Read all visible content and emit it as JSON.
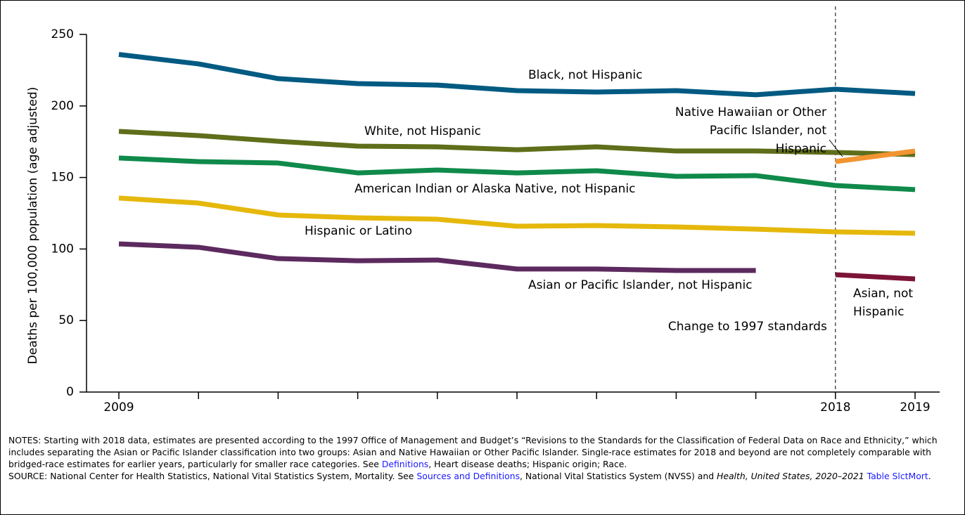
{
  "chart_data": {
    "type": "line",
    "y_label": "Deaths per 100,000 population (age adjusted)",
    "categories": [
      2009,
      null,
      null,
      null,
      null,
      null,
      null,
      null,
      null,
      2018,
      2019
    ],
    "ylim": [
      0,
      250
    ],
    "yticks": [
      0,
      50,
      100,
      150,
      200,
      250
    ],
    "series": [
      {
        "name": "Black, not Hispanic",
        "color": "#005a82",
        "values": [
          236.0,
          229.4,
          219.1,
          215.6,
          214.6,
          210.7,
          209.7,
          210.7,
          207.8,
          211.7,
          208.7
        ]
      },
      {
        "name": "White, not Hispanic",
        "color": "#5e6e1a",
        "values": [
          182.2,
          179.3,
          175.3,
          171.9,
          171.4,
          169.4,
          171.4,
          168.5,
          168.5,
          167.5,
          166.0
        ]
      },
      {
        "name": "American Indian or Alaska Native, not Hispanic",
        "color": "#0f8a4b",
        "values": [
          163.6,
          161.1,
          160.1,
          153.2,
          155.2,
          153.2,
          154.7,
          150.8,
          151.3,
          144.4,
          141.5
        ]
      },
      {
        "name": "Hispanic or Latino",
        "color": "#e5b80b",
        "values": [
          135.6,
          132.1,
          123.8,
          121.8,
          120.8,
          115.9,
          116.4,
          115.4,
          113.9,
          112.0,
          111.0
        ]
      },
      {
        "name": "Asian or Pacific Islander, not Hispanic",
        "color": "#5c2a5e",
        "values": [
          103.6,
          101.2,
          93.3,
          91.8,
          92.3,
          86.0,
          86.0,
          85.0,
          85.0,
          null,
          null
        ]
      },
      {
        "name": "Native Hawaiian or Other Pacific Islander, not Hispanic",
        "color": "#f29431",
        "values": [
          null,
          null,
          null,
          null,
          null,
          null,
          null,
          null,
          null,
          161.1,
          168.5
        ]
      },
      {
        "name": "Asian, not Hispanic",
        "color": "#7c1438",
        "values": [
          null,
          null,
          null,
          null,
          null,
          null,
          null,
          null,
          null,
          82.0,
          79.1
        ]
      }
    ],
    "annotation": {
      "text": "Change to 1997 standards",
      "x": 2018
    }
  },
  "notes": [
    [
      {
        "text": "NOTES: Starting with 2018 data, estimates are presented according to the 1997 Office of Management and Budget’s “Revisions to the Standards for the Classification of Federal Data on Race and Ethnicity,” which includes separating the Asian or Pacific Islander classification into two groups: Asian and Native Hawaiian or Other Pacific Islander. Single-race estimates for 2018 and beyond are not completely comparable with bridged-race estimates for earlier years, particularly for smaller race categories. See ",
        "style": "plain"
      },
      {
        "text": "Definitions",
        "style": "link"
      },
      {
        "text": ", Heart disease deaths; Hispanic origin; Race.",
        "style": "plain"
      }
    ],
    [
      {
        "text": "SOURCE: National Center for Health Statistics, National Vital Statistics System, Mortality. See ",
        "style": "plain"
      },
      {
        "text": "Sources and Definitions",
        "style": "link"
      },
      {
        "text": ", National Vital Statistics System (NVSS) and ",
        "style": "plain"
      },
      {
        "text": "Health, United States, 2020–2021",
        "style": "italic"
      },
      {
        "text": " ",
        "style": "plain"
      },
      {
        "text": "Table SlctMort",
        "style": "link"
      },
      {
        "text": ".",
        "style": "plain"
      }
    ]
  ]
}
